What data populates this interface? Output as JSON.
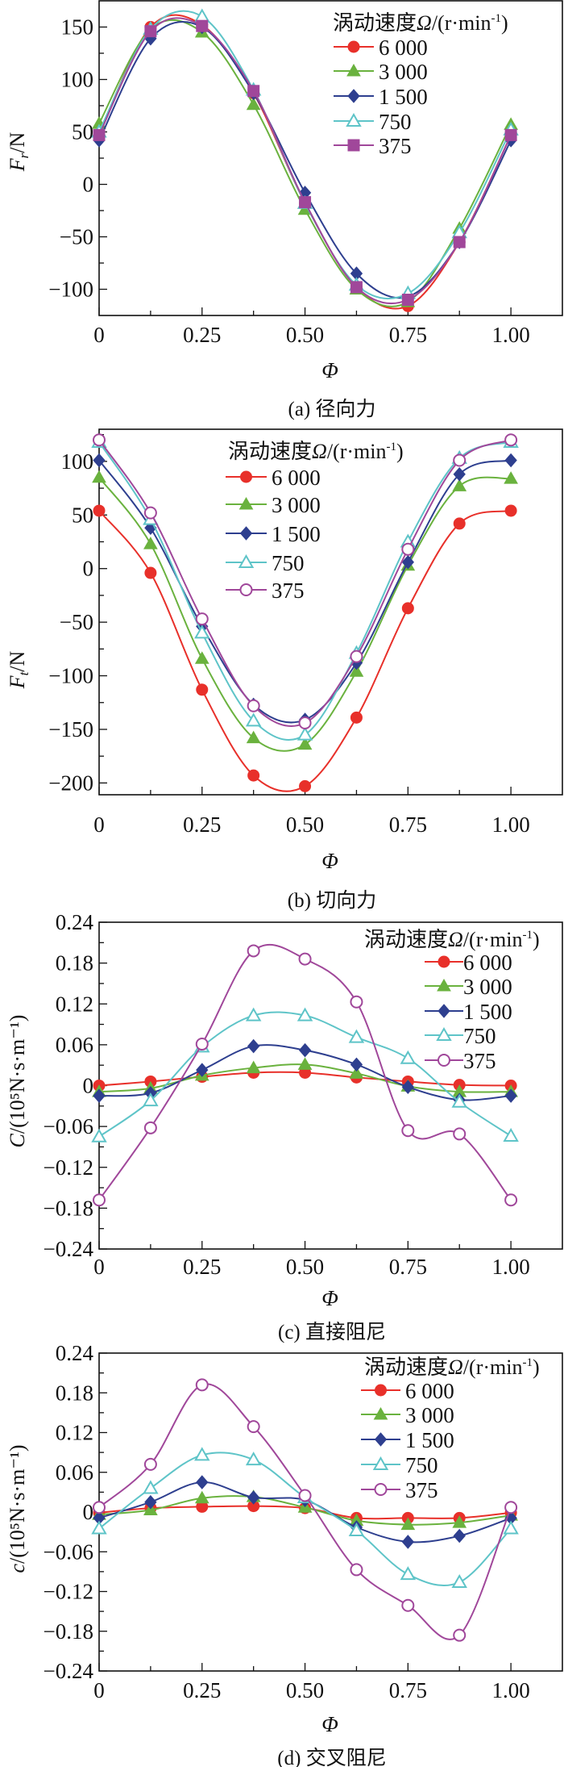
{
  "figure": {
    "legend_title_prefix": "涡动速度",
    "legend_title_symbol": "Ω",
    "legend_title_unit": "/(r·min",
    "legend_title_sup": "-1",
    "legend_title_close": ")",
    "series_colors": {
      "6 000": "#e8302a",
      "3 000": "#6ab23e",
      "1 500": "#2e3f8f",
      "750": "#5ec4c8",
      "375": "#a0479a"
    }
  },
  "chart_data": [
    {
      "id": "a",
      "type": "line",
      "caption": "(a) 径向力",
      "xlabel": "Φ",
      "ylabel_main": "F",
      "ylabel_sub": "r",
      "ylabel_unit": "/N",
      "xlim": [
        0,
        1.125
      ],
      "ylim": [
        -125,
        175
      ],
      "xticks": [
        0,
        0.25,
        0.5,
        0.75,
        1.0
      ],
      "xtick_labels": [
        "0",
        "0.25",
        "0.50",
        "0.75",
        "1.00"
      ],
      "yticks": [
        -100,
        -50,
        0,
        50,
        100,
        150
      ],
      "ytick_labels": [
        "−100",
        "−50",
        "0",
        "50",
        "100",
        "150"
      ],
      "legend_position": "top-right",
      "x": [
        0,
        0.125,
        0.25,
        0.375,
        0.5,
        0.625,
        0.75,
        0.875,
        1.0
      ],
      "series": [
        {
          "name": "6 000",
          "marker": "circle",
          "values": [
            48,
            150,
            152,
            87,
            -18,
            -98,
            -116,
            -55,
            47
          ]
        },
        {
          "name": "3 000",
          "marker": "triangle",
          "values": [
            58,
            148,
            145,
            76,
            -24,
            -100,
            -112,
            -42,
            57
          ]
        },
        {
          "name": "1 500",
          "marker": "diamond",
          "values": [
            42,
            139,
            150,
            87,
            -8,
            -85,
            -107,
            -55,
            42
          ]
        },
        {
          "name": "750",
          "marker": "triangle-open",
          "values": [
            50,
            148,
            160,
            90,
            -18,
            -96,
            -104,
            -46,
            52
          ]
        },
        {
          "name": "375",
          "marker": "square",
          "values": [
            47,
            146,
            151,
            89,
            -17,
            -98,
            -110,
            -55,
            47
          ]
        }
      ]
    },
    {
      "id": "b",
      "type": "line",
      "caption": "(b) 切向力",
      "xlabel": "Φ",
      "ylabel_main": "F",
      "ylabel_sub": "t",
      "ylabel_unit": "/N",
      "xlim": [
        0,
        1.125
      ],
      "ylim": [
        -211,
        130
      ],
      "xticks": [
        0,
        0.25,
        0.5,
        0.75,
        1.0
      ],
      "xtick_labels": [
        "0",
        "0.25",
        "0.50",
        "0.75",
        "1.00"
      ],
      "yticks": [
        -200,
        -150,
        -100,
        -50,
        0,
        50,
        100
      ],
      "ytick_labels": [
        "−200",
        "−150",
        "−100",
        "−50",
        "0",
        "50",
        "100"
      ],
      "legend_position": "top-center",
      "x": [
        0,
        0.125,
        0.25,
        0.375,
        0.5,
        0.625,
        0.75,
        0.875,
        1.0
      ],
      "series": [
        {
          "name": "6 000",
          "marker": "circle",
          "values": [
            54,
            -4,
            -113,
            -193,
            -203,
            -139,
            -37,
            42,
            54
          ]
        },
        {
          "name": "3 000",
          "marker": "triangle",
          "values": [
            85,
            23,
            -84,
            -158,
            -164,
            -96,
            3,
            77,
            84
          ]
        },
        {
          "name": "1 500",
          "marker": "diamond",
          "values": [
            101,
            38,
            -54,
            -127,
            -141,
            -88,
            6,
            88,
            101
          ]
        },
        {
          "name": "750",
          "marker": "triangle-open",
          "values": [
            118,
            46,
            -60,
            -142,
            -155,
            -79,
            25,
            103,
            118
          ]
        },
        {
          "name": "375",
          "marker": "circle-open",
          "values": [
            120,
            52,
            -47,
            -128,
            -144,
            -82,
            18,
            101,
            120
          ]
        }
      ]
    },
    {
      "id": "c",
      "type": "line",
      "caption": "(c) 直接阻尼",
      "xlabel": "Φ",
      "ylabel_main": "C",
      "ylabel_sub": "",
      "ylabel_unit": "/(10⁵N·s·m⁻¹)",
      "xlim": [
        0,
        1.125
      ],
      "ylim": [
        -0.24,
        0.24
      ],
      "xticks": [
        0,
        0.25,
        0.5,
        0.75,
        1.0
      ],
      "xtick_labels": [
        "0",
        "0.25",
        "0.50",
        "0.75",
        "1.00"
      ],
      "yticks": [
        -0.24,
        -0.18,
        -0.12,
        -0.06,
        0,
        0.06,
        0.12,
        0.18,
        0.24
      ],
      "ytick_labels": [
        "−0.24",
        "−0.18",
        "−0.12",
        "−0.06",
        "0",
        "0.06",
        "0.12",
        "0.18",
        "0.24"
      ],
      "legend_position": "top-right",
      "x": [
        0,
        0.125,
        0.25,
        0.375,
        0.5,
        0.625,
        0.75,
        0.875,
        1.0
      ],
      "series": [
        {
          "name": "6 000",
          "marker": "circle",
          "values": [
            0.0,
            0.006,
            0.013,
            0.019,
            0.019,
            0.012,
            0.006,
            0.001,
            0.0
          ]
        },
        {
          "name": "3 000",
          "marker": "triangle",
          "values": [
            -0.009,
            -0.004,
            0.015,
            0.026,
            0.031,
            0.018,
            -0.001,
            -0.009,
            -0.009
          ]
        },
        {
          "name": "1 500",
          "marker": "diamond",
          "values": [
            -0.015,
            -0.011,
            0.023,
            0.058,
            0.052,
            0.031,
            -0.002,
            -0.021,
            -0.015
          ]
        },
        {
          "name": "750",
          "marker": "triangle-open",
          "values": [
            -0.075,
            -0.022,
            0.057,
            0.103,
            0.103,
            0.071,
            0.04,
            -0.024,
            -0.074
          ]
        },
        {
          "name": "375",
          "marker": "circle-open",
          "values": [
            -0.168,
            -0.062,
            0.061,
            0.198,
            0.186,
            0.123,
            -0.066,
            -0.071,
            -0.168
          ]
        }
      ]
    },
    {
      "id": "d",
      "type": "line",
      "caption": "(d) 交叉阻尼",
      "xlabel": "Φ",
      "ylabel_main": "c",
      "ylabel_sub": "",
      "ylabel_unit": "/(10⁵N·s·m⁻¹)",
      "xlim": [
        0,
        1.125
      ],
      "ylim": [
        -0.24,
        0.24
      ],
      "xticks": [
        0,
        0.25,
        0.5,
        0.75,
        1.0
      ],
      "xtick_labels": [
        "0",
        "0.25",
        "0.50",
        "0.75",
        "1.00"
      ],
      "yticks": [
        -0.24,
        -0.18,
        -0.12,
        -0.06,
        0,
        0.06,
        0.12,
        0.18,
        0.24
      ],
      "ytick_labels": [
        "−0.24",
        "−0.18",
        "−0.12",
        "−0.06",
        "0",
        "0.06",
        "0.12",
        "0.18",
        "0.24"
      ],
      "legend_position": "top-right",
      "x": [
        0,
        0.125,
        0.25,
        0.375,
        0.5,
        0.625,
        0.75,
        0.875,
        1.0
      ],
      "series": [
        {
          "name": "6 000",
          "marker": "circle",
          "values": [
            -0.001,
            0.006,
            0.008,
            0.009,
            0.006,
            -0.009,
            -0.009,
            -0.009,
            -0.001
          ]
        },
        {
          "name": "3 000",
          "marker": "triangle",
          "values": [
            -0.004,
            0.003,
            0.021,
            0.023,
            0.007,
            -0.013,
            -0.019,
            -0.016,
            -0.005
          ]
        },
        {
          "name": "1 500",
          "marker": "diamond",
          "values": [
            -0.009,
            0.015,
            0.045,
            0.022,
            0.018,
            -0.023,
            -0.045,
            -0.036,
            -0.009
          ]
        },
        {
          "name": "750",
          "marker": "triangle-open",
          "values": [
            -0.025,
            0.036,
            0.086,
            0.079,
            0.022,
            -0.028,
            -0.094,
            -0.106,
            -0.025
          ]
        },
        {
          "name": "375",
          "marker": "circle-open",
          "values": [
            0.007,
            0.072,
            0.192,
            0.129,
            0.025,
            -0.087,
            -0.141,
            -0.186,
            0.007
          ]
        }
      ]
    }
  ]
}
